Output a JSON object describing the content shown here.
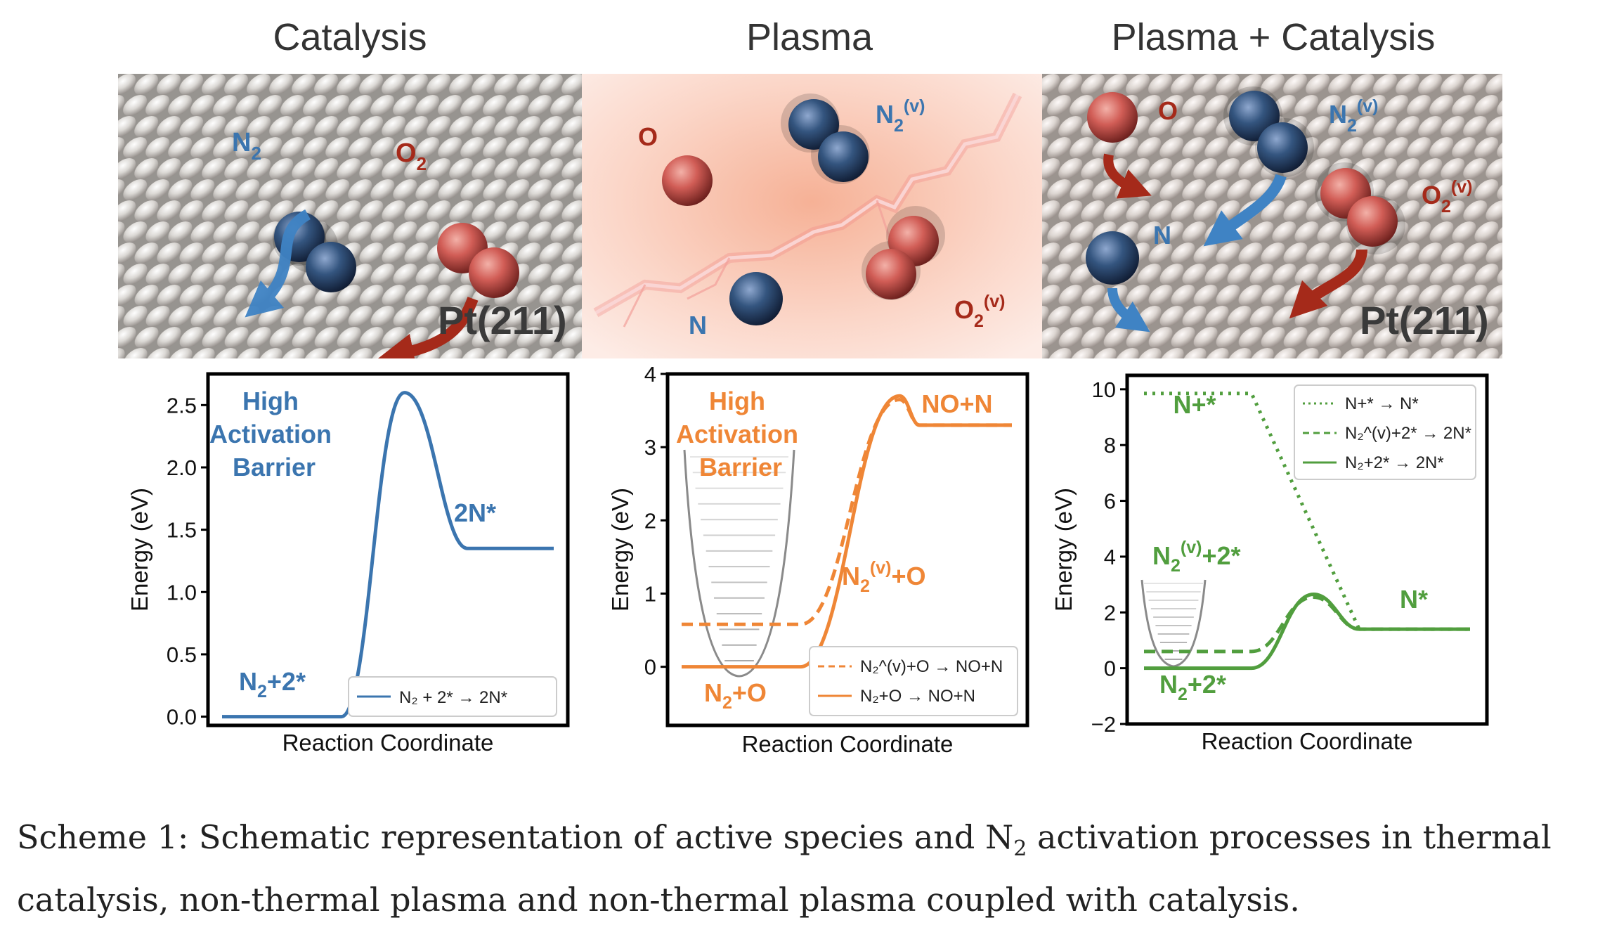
{
  "titles": {
    "catalysis": "Catalysis",
    "plasma": "Plasma",
    "plasma_catalysis": "Plasma + Catalysis"
  },
  "images": {
    "catalysis": {
      "n2": "N",
      "n2_sub": "2",
      "o2": "O",
      "o2_sub": "2",
      "surface": "Pt(211)"
    },
    "plasma": {
      "o": "O",
      "n2v": "N",
      "n2v_sub": "2",
      "n2v_sup": "(v)",
      "n": "N",
      "o2v": "O",
      "o2v_sub": "2",
      "o2v_sup": "(v)"
    },
    "plasma_catalysis": {
      "o": "O",
      "n2v": "N",
      "n2v_sub": "2",
      "n2v_sup": "(v)",
      "n": "N",
      "o2v": "O",
      "o2v_sub": "2",
      "o2v_sup": "(v)",
      "surface": "Pt(211)"
    }
  },
  "colors": {
    "catalysis": "#3b75af",
    "plasma": "#ef8636",
    "plasma_catalysis": "#519e3e",
    "n_atom": "#2c4a72",
    "o_atom": "#d9635f",
    "arrow_red": "#a52a1a",
    "arrow_blue": "#3f83c4"
  },
  "chart_data": [
    {
      "type": "line",
      "xlabel": "Reaction Coordinate",
      "ylabel": "Energy (eV)",
      "ylim": [
        -0.07,
        2.75
      ],
      "yticks": [
        "0.0",
        "0.5",
        "1.0",
        "1.5",
        "2.0",
        "2.5"
      ],
      "ytick_values": [
        0,
        0.5,
        1.0,
        1.5,
        2.0,
        2.5
      ],
      "series": [
        {
          "name": "N₂ + 2* → 2N*",
          "style": "solid",
          "points": [
            [
              0,
              0
            ],
            [
              0.36,
              0
            ],
            [
              0.55,
              2.6
            ],
            [
              0.74,
              1.35
            ],
            [
              1,
              1.35
            ]
          ]
        }
      ],
      "annotations": {
        "barrier_line1": "High",
        "barrier_line2": "Activation",
        "barrier_line3": "Barrier",
        "product": "2N*",
        "reactant": "N",
        "reactant_sub": "2",
        "reactant_rest": "+2*"
      },
      "legend": "bottom-right"
    },
    {
      "type": "line",
      "xlabel": "Reaction Coordinate",
      "ylabel": "Energy (eV)",
      "ylim": [
        -0.8,
        4.0
      ],
      "yticks": [
        "0",
        "1",
        "2",
        "3",
        "4"
      ],
      "ytick_values": [
        0,
        1,
        2,
        3,
        4
      ],
      "series": [
        {
          "name": "N₂^(v)+O → NO+N",
          "style": "dashed",
          "points": [
            [
              0,
              0.58
            ],
            [
              0.36,
              0.58
            ],
            [
              0.66,
              3.65
            ],
            [
              0.72,
              3.3
            ],
            [
              1,
              3.3
            ]
          ]
        },
        {
          "name": "N₂+O → NO+N",
          "style": "solid",
          "points": [
            [
              0,
              0
            ],
            [
              0.36,
              0
            ],
            [
              0.66,
              3.7
            ],
            [
              0.72,
              3.3
            ],
            [
              1,
              3.3
            ]
          ]
        }
      ],
      "annotations": {
        "barrier_line1": "High",
        "barrier_line2": "Activation",
        "barrier_line3": "Barrier",
        "product": "NO+N",
        "vib": "N",
        "vib_sub": "2",
        "vib_sup": "(v)",
        "vib_rest": "+O",
        "reactant": "N",
        "reactant_sub": "2",
        "reactant_rest": "+O"
      },
      "legend": "bottom-right"
    },
    {
      "type": "line",
      "xlabel": "Reaction Coordinate",
      "ylabel": "Energy (eV)",
      "ylim": [
        -2.0,
        10.5
      ],
      "yticks": [
        "−2",
        "0",
        "2",
        "4",
        "6",
        "8",
        "10"
      ],
      "ytick_values": [
        -2,
        0,
        2,
        4,
        6,
        8,
        10
      ],
      "series": [
        {
          "name": "N+* → N*",
          "style": "dotted",
          "points": [
            [
              0,
              9.85
            ],
            [
              0.33,
              9.85
            ],
            [
              0.66,
              1.4
            ],
            [
              1,
              1.4
            ]
          ]
        },
        {
          "name": "N₂^(v)+2* → 2N*",
          "style": "dashed",
          "points": [
            [
              0,
              0.6
            ],
            [
              0.33,
              0.6
            ],
            [
              0.52,
              2.55
            ],
            [
              0.66,
              1.4
            ],
            [
              1,
              1.4
            ]
          ]
        },
        {
          "name": "N₂+2* → 2N*",
          "style": "solid",
          "points": [
            [
              0,
              0
            ],
            [
              0.33,
              0
            ],
            [
              0.52,
              2.65
            ],
            [
              0.66,
              1.4
            ],
            [
              1,
              1.4
            ]
          ]
        }
      ],
      "annotations": {
        "n_gas": "N+*",
        "product": "N*",
        "vib": "N",
        "vib_sub": "2",
        "vib_sup": "(v)",
        "vib_rest": "+2*",
        "reactant": "N",
        "reactant_sub": "2",
        "reactant_rest": "+2*"
      },
      "legend": "top-right"
    }
  ],
  "caption": {
    "line1_a": "Scheme 1: Schematic representation of active species and N",
    "line1_sub": "2",
    "line1_b": " activation processes in thermal",
    "line2": "catalysis, non-thermal plasma and non-thermal plasma coupled with catalysis."
  }
}
